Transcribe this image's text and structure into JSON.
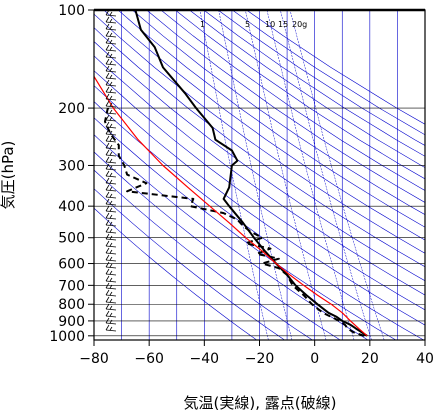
{
  "chart_data": {
    "type": "line",
    "title": "",
    "xlabel": "気温(実線), 露点(破線)",
    "ylabel": "気圧(hPa)",
    "xlim": [
      -80,
      40
    ],
    "ylim": [
      1030,
      100
    ],
    "y_scale": "log",
    "x_ticks": [
      -80,
      -60,
      -40,
      -20,
      0,
      20,
      40
    ],
    "x_tick_labels": [
      "−80",
      "−60",
      "−40",
      "−20",
      "0",
      "20",
      "40"
    ],
    "y_ticks": [
      100,
      200,
      300,
      400,
      500,
      600,
      700,
      800,
      900,
      1000
    ],
    "y_tick_labels": [
      "100",
      "200",
      "300",
      "400",
      "500",
      "600",
      "700",
      "800",
      "900",
      "1000"
    ],
    "mixing_ratio_labels": [
      "1",
      "5",
      "10",
      "15",
      "20g"
    ],
    "line_colors": {
      "temperature": "#000000",
      "dew_point": "#000000",
      "parcel": "#ff0000",
      "reference_lines": "#0000cc"
    },
    "series": [
      {
        "pressure": [
          1000,
          975,
          950,
          925,
          900,
          875,
          850,
          800,
          750,
          700,
          650,
          600,
          550,
          500,
          450,
          400,
          380,
          350,
          300,
          290,
          270,
          250,
          230,
          200,
          180,
          150,
          130,
          115,
          100
        ],
        "temperature": [
          19,
          17,
          15,
          13,
          10,
          8,
          5,
          1,
          -3,
          -7,
          -10,
          -14,
          -18,
          -22,
          -26,
          -31,
          -33,
          -31,
          -30,
          -28,
          -30,
          -36,
          -37,
          -43,
          -47,
          -55,
          -58,
          -63,
          -65
        ]
      },
      {
        "pressure": [
          1000,
          975,
          950,
          925,
          900,
          850,
          800,
          750,
          700,
          650,
          620,
          600,
          580,
          560,
          540,
          520,
          500,
          480,
          460,
          440,
          420,
          400,
          380,
          360,
          340,
          320,
          300,
          280,
          260,
          240,
          220,
          200
        ],
        "dew_point": [
          18,
          14,
          12,
          11,
          9,
          3,
          -1,
          -4,
          -8,
          -10,
          -13,
          -19,
          -13,
          -21,
          -16,
          -25,
          -19,
          -23,
          -26,
          -28,
          -33,
          -45,
          -44,
          -68,
          -61,
          -68,
          -69,
          -71,
          -71,
          -74,
          -76,
          -75
        ]
      },
      {
        "pressure": [
          1000,
          950,
          900,
          850,
          800,
          750,
          700,
          650,
          600,
          550,
          500,
          450,
          400,
          350,
          300,
          250,
          200,
          160
        ],
        "parcel": [
          19,
          16,
          13,
          10,
          6,
          1,
          -4,
          -9,
          -14,
          -19,
          -25,
          -31,
          -38,
          -46,
          -55,
          -64,
          -73,
          -80
        ]
      }
    ]
  }
}
